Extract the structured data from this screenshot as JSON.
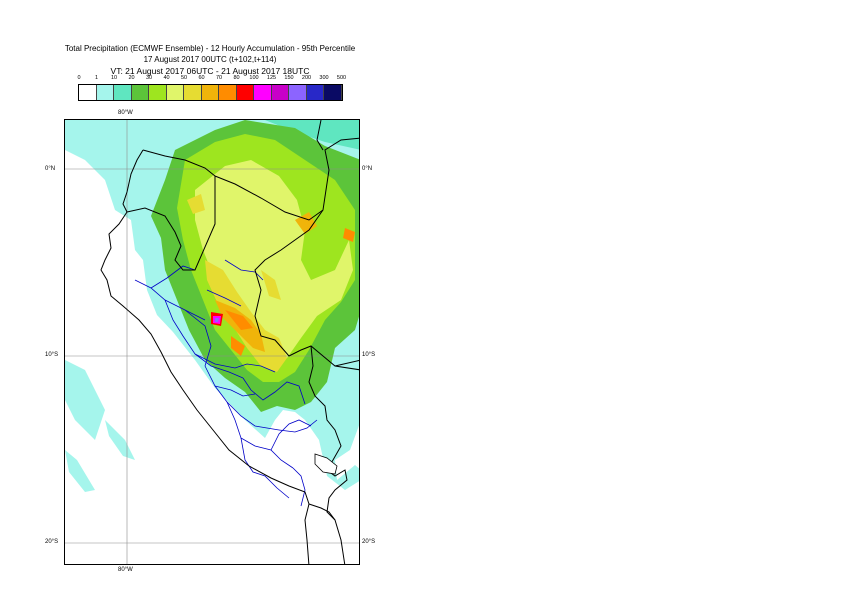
{
  "title": {
    "line1": "Total Precipitation (ECMWF Ensemble) - 12 Hourly Accumulation - 95th Percentile",
    "line2": "17 August 2017 00UTC (t+102,t+114)",
    "line3": "VT: 21 August 2017 06UTC - 21 August 2017 18UTC"
  },
  "legend": {
    "thresholds": [
      "0",
      "1",
      "10",
      "20",
      "30",
      "40",
      "50",
      "60",
      "70",
      "80",
      "100",
      "125",
      "150",
      "200",
      "300",
      "500"
    ],
    "colors": [
      "#ffffff",
      "#a5f5ec",
      "#5fe6c0",
      "#5cc43a",
      "#9ee51f",
      "#e0f56a",
      "#e6dc32",
      "#f0b40a",
      "#ff8c00",
      "#ff0000",
      "#ff00ff",
      "#c800c8",
      "#8c64ff",
      "#2828c8",
      "#0a0a64"
    ]
  },
  "map": {
    "axis_labels": {
      "lon_top": "80°W",
      "lon_bottom": "80°W",
      "lat_0_left": "0°N",
      "lat_0_right": "0°N",
      "lat_10_left": "10°S",
      "lat_10_right": "10°S",
      "lat_20_left": "20°S",
      "lat_20_right": "20°S"
    },
    "extent": {
      "lon": [
        -83.5,
        -67.5
      ],
      "lat": [
        -21.5,
        2.5
      ]
    },
    "gridlines": {
      "lon": [
        -80
      ],
      "lat": [
        0,
        -10,
        -20
      ]
    },
    "colors": {
      "country_border": "#000000",
      "admin_border": "#0000c8",
      "graticule": "#8c8c8c"
    }
  }
}
